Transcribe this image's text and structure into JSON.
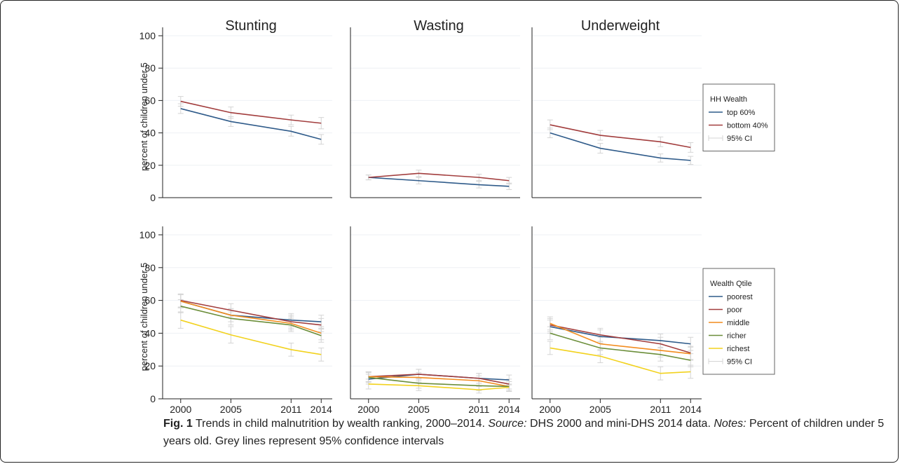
{
  "chart_data": [
    {
      "type": "line",
      "ylabel": "percent of children under 5",
      "ylim": [
        0,
        100
      ],
      "yticks": [
        0,
        20,
        40,
        60,
        80,
        100
      ],
      "grid": true,
      "x": [
        2000,
        2005,
        2011,
        2014
      ],
      "xlim": [
        1998.2,
        2015.1
      ],
      "panel_titles": [
        "Stunting",
        "Wasting",
        "Underweight"
      ],
      "legend": {
        "title": "HH Wealth",
        "ci_label": "95% CI",
        "ci_color": "#d4d4d4"
      },
      "series": [
        {
          "name": "top 60%",
          "color": "#2f5b8a",
          "values": [
            [
              55,
              47,
              41,
              36
            ],
            [
              12.5,
              10.5,
              8,
              7
            ],
            [
              40,
              30.5,
              24.5,
              23
            ]
          ],
          "errors": [
            [
              3,
              3,
              3,
              3
            ],
            [
              1.5,
              2,
              2,
              2
            ],
            [
              3,
              3,
              2.5,
              2.5
            ]
          ]
        },
        {
          "name": "bottom 40%",
          "color": "#a23d3d",
          "values": [
            [
              59.5,
              52.5,
              48,
              46
            ],
            [
              12.5,
              15,
              12.5,
              10.5
            ],
            [
              45,
              38.5,
              34.5,
              31
            ]
          ],
          "errors": [
            [
              3,
              3.5,
              3,
              3.5
            ],
            [
              1.5,
              2,
              2,
              2
            ],
            [
              3,
              3,
              3,
              3
            ]
          ]
        }
      ]
    },
    {
      "type": "line",
      "ylabel": "percent of children under 5",
      "ylim": [
        0,
        100
      ],
      "yticks": [
        0,
        20,
        40,
        60,
        80,
        100
      ],
      "grid": true,
      "x": [
        2000,
        2005,
        2011,
        2014
      ],
      "xlim": [
        1998.2,
        2015.1
      ],
      "xticks": [
        2000,
        2005,
        2011,
        2014
      ],
      "legend": {
        "title": "Wealth Qtile",
        "ci_label": "95% CI",
        "ci_color": "#d4d4d4"
      },
      "series": [
        {
          "name": "poorest",
          "color": "#2f5b8a",
          "values": [
            [
              59.5,
              51,
              48,
              47
            ],
            [
              12,
              15,
              12.5,
              11.5
            ],
            [
              44,
              38,
              35.5,
              33.5
            ]
          ],
          "errors": [
            [
              4,
              4,
              4,
              4
            ],
            [
              3,
              3,
              3,
              3
            ],
            [
              4,
              4,
              4,
              4
            ]
          ]
        },
        {
          "name": "poor",
          "color": "#a23d3d",
          "values": [
            [
              60,
              54,
              47,
              45
            ],
            [
              13.5,
              15,
              12.5,
              9
            ],
            [
              45,
              39,
              33.5,
              28
            ]
          ],
          "errors": [
            [
              4,
              4,
              4,
              4
            ],
            [
              3,
              3,
              3,
              3
            ],
            [
              4,
              4,
              4,
              4
            ]
          ]
        },
        {
          "name": "middle",
          "color": "#f28c1e",
          "values": [
            [
              59.5,
              51,
              46,
              40
            ],
            [
              13.5,
              13,
              11,
              7.5
            ],
            [
              46,
              33.5,
              29.5,
              27.5
            ]
          ],
          "errors": [
            [
              4,
              4,
              4,
              4
            ],
            [
              3,
              3,
              3,
              3
            ],
            [
              4,
              4,
              4,
              4
            ]
          ]
        },
        {
          "name": "richer",
          "color": "#6b8e3a",
          "values": [
            [
              56.5,
              49,
              45,
              38.5
            ],
            [
              13,
              9.5,
              8,
              7.5
            ],
            [
              40,
              31,
              27,
              23.5
            ]
          ],
          "errors": [
            [
              4,
              4,
              4,
              4
            ],
            [
              3,
              3,
              3,
              3
            ],
            [
              4,
              4,
              4,
              4
            ]
          ]
        },
        {
          "name": "richest",
          "color": "#f2d21e",
          "values": [
            [
              48,
              39,
              30,
              27
            ],
            [
              9,
              8,
              5.5,
              7
            ],
            [
              31,
              26,
              15.5,
              16.5
            ]
          ],
          "errors": [
            [
              5,
              5,
              4,
              4
            ],
            [
              3,
              3,
              2,
              2
            ],
            [
              4,
              4,
              4,
              4
            ]
          ]
        }
      ]
    }
  ],
  "caption": {
    "label": "Fig. 1",
    "text": " Trends in child malnutrition by wealth ranking, 2000–2014. ",
    "source_label": "Source:",
    "source": " DHS 2000 and mini-DHS 2014 data. ",
    "notes_label": "Notes:",
    "notes": " Percent of children under 5 years old. Grey lines represent 95% confidence intervals"
  }
}
